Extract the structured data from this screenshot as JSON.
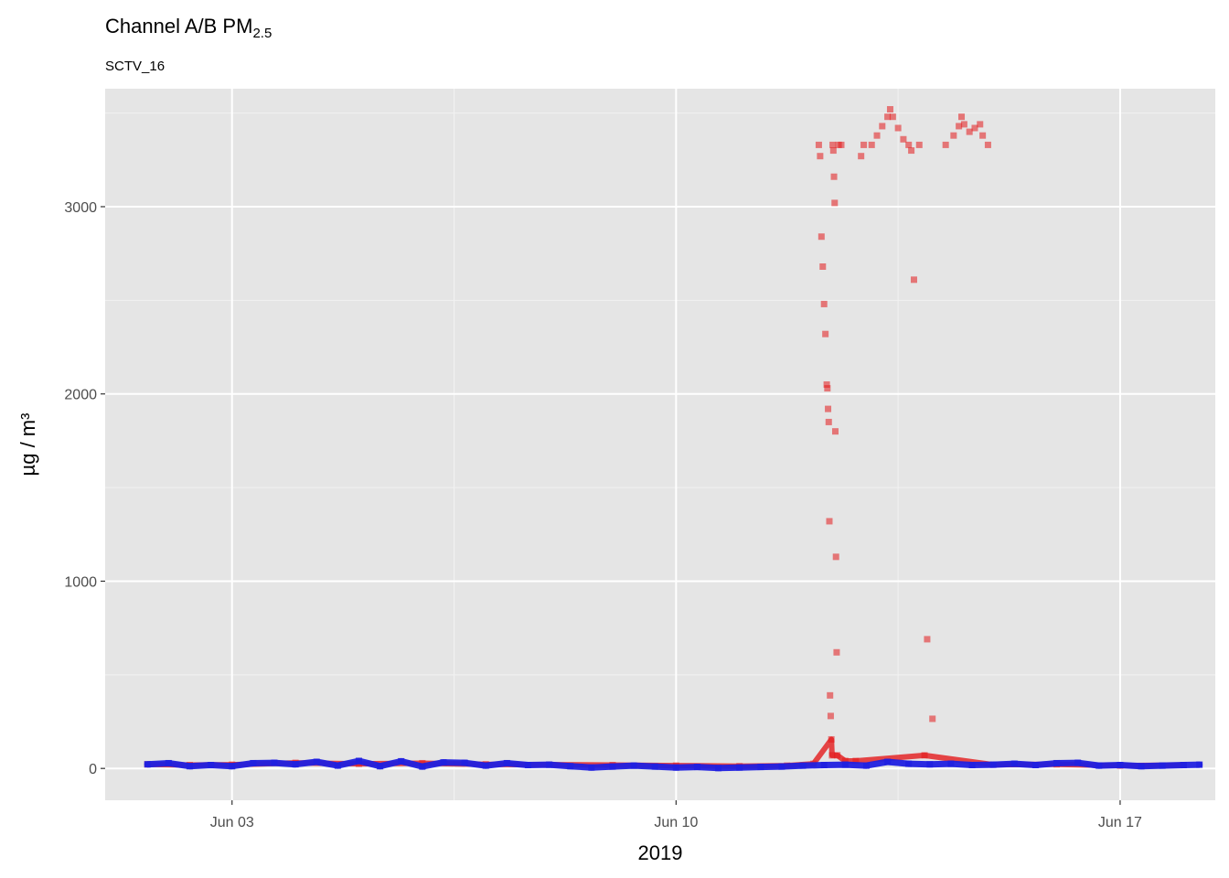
{
  "chart_data": {
    "type": "scatter",
    "title": "Channel A/B PM",
    "title_subscript": "2.5",
    "subtitle": "SCTV_16",
    "xlabel": "2019",
    "ylabel": "µg / m³",
    "x_ticks": [
      {
        "date": "2019-06-03",
        "label": "Jun 03"
      },
      {
        "date": "2019-06-10",
        "label": "Jun 10"
      },
      {
        "date": "2019-06-17",
        "label": "Jun 17"
      }
    ],
    "x_range": [
      "2019-06-01 00:00",
      "2019-06-18 12:00"
    ],
    "y_ticks": [
      0,
      1000,
      2000,
      3000
    ],
    "ylim": [
      -170,
      3630
    ],
    "grid": true,
    "legend": "none",
    "series": [
      {
        "color": "#e31a1c",
        "points": [
          [
            "2019-06-01 16:00",
            22
          ],
          [
            "2019-06-02 08:00",
            18
          ],
          [
            "2019-06-03 00:00",
            20
          ],
          [
            "2019-06-04 00:00",
            30
          ],
          [
            "2019-06-05 00:00",
            25
          ],
          [
            "2019-06-06 00:00",
            28
          ],
          [
            "2019-06-07 00:00",
            22
          ],
          [
            "2019-06-08 00:00",
            20
          ],
          [
            "2019-06-09 00:00",
            18
          ],
          [
            "2019-06-10 00:00",
            15
          ],
          [
            "2019-06-11 00:00",
            12
          ],
          [
            "2019-06-11 18:00",
            15
          ],
          [
            "2019-06-12 04:00",
            25
          ],
          [
            "2019-06-12 06:00",
            3330
          ],
          [
            "2019-06-12 06:30",
            3270
          ],
          [
            "2019-06-12 07:00",
            2840
          ],
          [
            "2019-06-12 07:30",
            2680
          ],
          [
            "2019-06-12 08:00",
            2480
          ],
          [
            "2019-06-12 08:30",
            2320
          ],
          [
            "2019-06-12 09:00",
            2050
          ],
          [
            "2019-06-12 09:15",
            2030
          ],
          [
            "2019-06-12 09:30",
            1920
          ],
          [
            "2019-06-12 09:45",
            1850
          ],
          [
            "2019-06-12 10:00",
            1320
          ],
          [
            "2019-06-12 10:15",
            390
          ],
          [
            "2019-06-12 10:30",
            280
          ],
          [
            "2019-06-12 10:45",
            155
          ],
          [
            "2019-06-12 11:00",
            70
          ],
          [
            "2019-06-12 11:15",
            3330
          ],
          [
            "2019-06-12 11:30",
            3300
          ],
          [
            "2019-06-12 11:45",
            3160
          ],
          [
            "2019-06-12 12:00",
            3020
          ],
          [
            "2019-06-12 12:15",
            1800
          ],
          [
            "2019-06-12 12:30",
            1130
          ],
          [
            "2019-06-12 12:45",
            620
          ],
          [
            "2019-06-12 13:00",
            70
          ],
          [
            "2019-06-12 13:30",
            3330
          ],
          [
            "2019-06-12 14:30",
            3330
          ],
          [
            "2019-06-12 16:00",
            40
          ],
          [
            "2019-06-12 20:00",
            40
          ],
          [
            "2019-06-12 22:00",
            3270
          ],
          [
            "2019-06-12 23:00",
            3330
          ],
          [
            "2019-06-13 02:00",
            3330
          ],
          [
            "2019-06-13 04:00",
            3380
          ],
          [
            "2019-06-13 06:00",
            3430
          ],
          [
            "2019-06-13 08:00",
            3480
          ],
          [
            "2019-06-13 09:00",
            3520
          ],
          [
            "2019-06-13 10:00",
            3480
          ],
          [
            "2019-06-13 12:00",
            3420
          ],
          [
            "2019-06-13 14:00",
            3360
          ],
          [
            "2019-06-13 16:00",
            3330
          ],
          [
            "2019-06-13 17:00",
            3300
          ],
          [
            "2019-06-13 18:00",
            2610
          ],
          [
            "2019-06-13 20:00",
            3330
          ],
          [
            "2019-06-13 22:00",
            70
          ],
          [
            "2019-06-13 23:00",
            690
          ],
          [
            "2019-06-14 01:00",
            265
          ],
          [
            "2019-06-14 06:00",
            3330
          ],
          [
            "2019-06-14 09:00",
            3380
          ],
          [
            "2019-06-14 11:00",
            3430
          ],
          [
            "2019-06-14 12:00",
            3480
          ],
          [
            "2019-06-14 13:00",
            3440
          ],
          [
            "2019-06-14 15:00",
            3400
          ],
          [
            "2019-06-14 17:00",
            3420
          ],
          [
            "2019-06-14 19:00",
            3440
          ],
          [
            "2019-06-14 20:00",
            3380
          ],
          [
            "2019-06-14 22:00",
            3330
          ],
          [
            "2019-06-15 00:00",
            20
          ],
          [
            "2019-06-16 00:00",
            22
          ],
          [
            "2019-06-17 00:00",
            15
          ],
          [
            "2019-06-18 00:00",
            18
          ]
        ]
      },
      {
        "color": "#2020e0",
        "points": [
          [
            "2019-06-01 16:00",
            22
          ],
          [
            "2019-06-02 00:00",
            28
          ],
          [
            "2019-06-02 08:00",
            12
          ],
          [
            "2019-06-02 16:00",
            18
          ],
          [
            "2019-06-03 00:00",
            12
          ],
          [
            "2019-06-03 08:00",
            28
          ],
          [
            "2019-06-03 16:00",
            30
          ],
          [
            "2019-06-04 00:00",
            22
          ],
          [
            "2019-06-04 08:00",
            35
          ],
          [
            "2019-06-04 16:00",
            15
          ],
          [
            "2019-06-05 00:00",
            40
          ],
          [
            "2019-06-05 08:00",
            12
          ],
          [
            "2019-06-05 16:00",
            38
          ],
          [
            "2019-06-06 00:00",
            10
          ],
          [
            "2019-06-06 08:00",
            32
          ],
          [
            "2019-06-06 16:00",
            30
          ],
          [
            "2019-06-07 00:00",
            15
          ],
          [
            "2019-06-07 08:00",
            28
          ],
          [
            "2019-06-07 16:00",
            18
          ],
          [
            "2019-06-08 00:00",
            20
          ],
          [
            "2019-06-08 08:00",
            12
          ],
          [
            "2019-06-08 16:00",
            5
          ],
          [
            "2019-06-09 00:00",
            10
          ],
          [
            "2019-06-09 08:00",
            15
          ],
          [
            "2019-06-09 16:00",
            10
          ],
          [
            "2019-06-10 00:00",
            5
          ],
          [
            "2019-06-10 08:00",
            8
          ],
          [
            "2019-06-10 16:00",
            2
          ],
          [
            "2019-06-11 00:00",
            5
          ],
          [
            "2019-06-11 08:00",
            8
          ],
          [
            "2019-06-11 16:00",
            10
          ],
          [
            "2019-06-12 00:00",
            15
          ],
          [
            "2019-06-12 08:00",
            18
          ],
          [
            "2019-06-12 16:00",
            20
          ],
          [
            "2019-06-13 00:00",
            15
          ],
          [
            "2019-06-13 08:00",
            35
          ],
          [
            "2019-06-13 16:00",
            25
          ],
          [
            "2019-06-14 00:00",
            22
          ],
          [
            "2019-06-14 08:00",
            25
          ],
          [
            "2019-06-14 16:00",
            18
          ],
          [
            "2019-06-15 00:00",
            20
          ],
          [
            "2019-06-15 08:00",
            25
          ],
          [
            "2019-06-15 16:00",
            18
          ],
          [
            "2019-06-16 00:00",
            28
          ],
          [
            "2019-06-16 08:00",
            30
          ],
          [
            "2019-06-16 16:00",
            15
          ],
          [
            "2019-06-17 00:00",
            18
          ],
          [
            "2019-06-17 08:00",
            12
          ],
          [
            "2019-06-17 16:00",
            15
          ],
          [
            "2019-06-18 00:00",
            18
          ],
          [
            "2019-06-18 06:00",
            20
          ]
        ]
      }
    ]
  }
}
